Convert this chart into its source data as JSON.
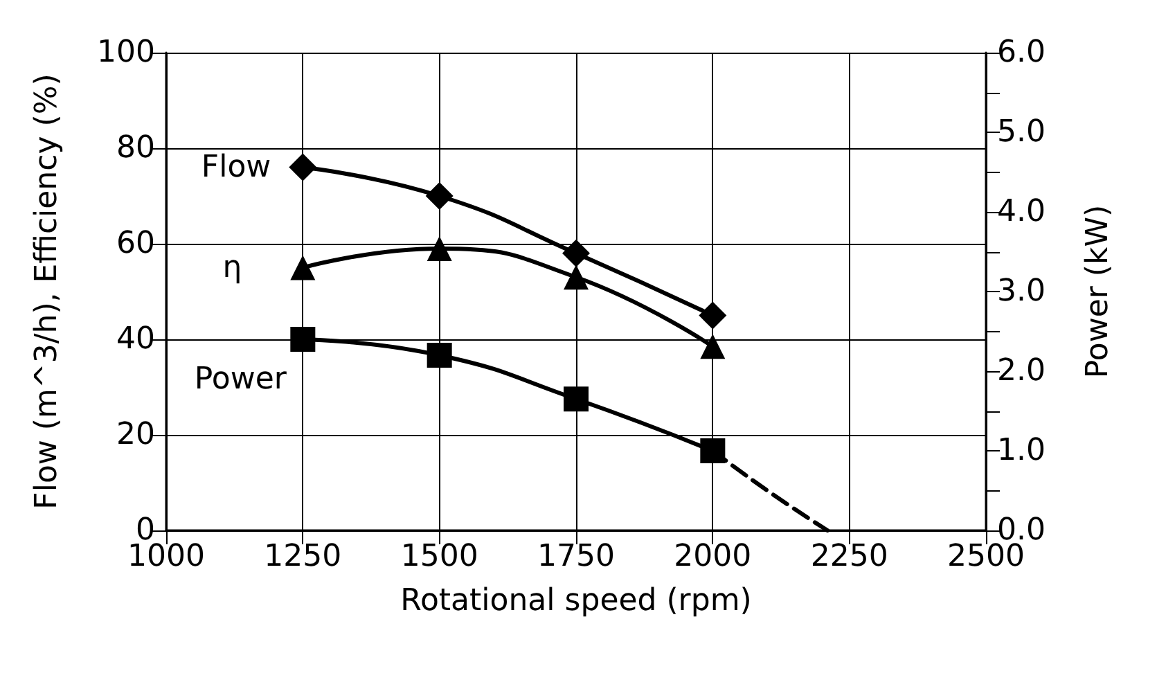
{
  "chart_data": {
    "type": "line",
    "xlabel": "Rotational speed (rpm)",
    "ylabel": "Flow (m^3/h), Efficiency (%)",
    "y2label": "Power (kW)",
    "xlim": [
      1000,
      2500
    ],
    "xticks": [
      1000,
      1250,
      1500,
      1750,
      2000,
      2250,
      2500
    ],
    "ylim": [
      0,
      100
    ],
    "yticks": [
      0,
      20,
      40,
      60,
      80,
      100
    ],
    "y2lim": [
      0,
      6
    ],
    "y2ticks": [
      {
        "value": 0,
        "label": "0.0"
      },
      {
        "value": 0.5,
        "label": null
      },
      {
        "value": 1,
        "label": "1.0"
      },
      {
        "value": 1.5,
        "label": null
      },
      {
        "value": 2,
        "label": "2.0"
      },
      {
        "value": 2.5,
        "label": null
      },
      {
        "value": 3,
        "label": "3.0"
      },
      {
        "value": 3.5,
        "label": null
      },
      {
        "value": 4,
        "label": "4.0"
      },
      {
        "value": 4.5,
        "label": null
      },
      {
        "value": 5,
        "label": "5.0"
      },
      {
        "value": 5.5,
        "label": null
      },
      {
        "value": 6,
        "label": "6.0"
      }
    ],
    "grid": true,
    "legend": false,
    "line_style": "solid",
    "series": [
      {
        "name": "Flow",
        "color": "#000000",
        "marker": "diamond",
        "x": [
          1250,
          1500,
          1750,
          2000
        ],
        "values": [
          76,
          70,
          58,
          45
        ]
      },
      {
        "name": "η",
        "color": "#000000",
        "marker": "triangle",
        "x": [
          1250,
          1500,
          1750,
          2000
        ],
        "values": [
          55,
          59,
          53,
          38.5
        ]
      },
      {
        "name": "Power",
        "color": "#000000",
        "marker": "square",
        "axis": "y2",
        "x": [
          1250,
          1500,
          1750,
          2000
        ],
        "values": [
          2.4,
          2.2,
          1.65,
          1.0
        ]
      },
      {
        "color": "#000000",
        "marker": "none",
        "line_style": "dashed",
        "axis": "y2",
        "x": [
          2000,
          2100,
          2210
        ],
        "values": [
          1.0,
          0.5,
          0
        ]
      }
    ]
  }
}
